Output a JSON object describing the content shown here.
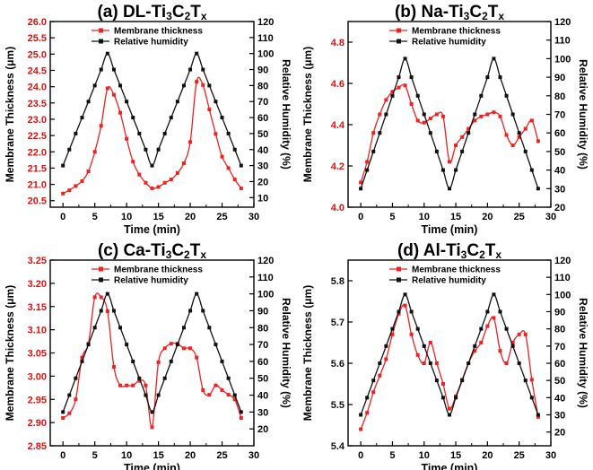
{
  "chart_data": [
    {
      "type": "line",
      "panel_title": "(a) DL-Ti₃C₂Tₓ",
      "title_main": "(a) DL-Ti",
      "title_sub1": "3",
      "title_mid": "C",
      "title_sub2": "2",
      "title_end": "T",
      "title_sub3": "x",
      "xlabel": "Time (min)",
      "ylabel_left": "Membrane Thickness (μm)",
      "ylabel_right": "Relative Humidity (%)",
      "xlim": [
        -2,
        30
      ],
      "xticks": [
        0,
        5,
        10,
        15,
        20,
        25,
        30
      ],
      "ylim_left": [
        20.3,
        26.0
      ],
      "yticks_left": [
        20.5,
        21.0,
        21.5,
        22.0,
        22.5,
        23.0,
        23.5,
        24.0,
        24.5,
        25.0,
        25.5,
        26.0
      ],
      "tick_labels_left": [
        "20.5",
        "21.0",
        "21.5",
        "22.0",
        "22.5",
        "23.0",
        "23.5",
        "24.0",
        "24.5",
        "25.0",
        "25.5",
        "26.0"
      ],
      "ylim_right": [
        4,
        120
      ],
      "yticks_right": [
        10,
        20,
        30,
        40,
        50,
        60,
        70,
        80,
        90,
        100,
        110,
        120
      ],
      "legend": [
        "Membrane thickness",
        "Relative humidity"
      ],
      "legend_position": "top-center",
      "series": [
        {
          "name": "Membrane thickness",
          "axis": "left",
          "color": "#ee2222",
          "x": [
            0,
            1,
            2,
            3,
            4,
            5,
            6,
            7,
            8,
            9,
            10,
            11,
            12,
            13,
            14,
            15,
            16,
            17,
            18,
            19,
            20,
            21,
            22,
            23,
            24,
            25,
            26,
            27,
            28
          ],
          "values": [
            20.72,
            20.82,
            20.95,
            21.1,
            21.4,
            22.0,
            22.8,
            23.95,
            23.75,
            23.2,
            22.4,
            21.7,
            21.3,
            21.05,
            20.88,
            20.92,
            21.05,
            21.15,
            21.35,
            21.65,
            22.3,
            24.15,
            24.05,
            23.3,
            22.55,
            21.85,
            21.5,
            21.15,
            20.88
          ]
        },
        {
          "name": "Relative humidity",
          "axis": "right",
          "color": "#111111",
          "x": [
            0,
            1,
            2,
            3,
            4,
            5,
            6,
            7,
            8,
            9,
            10,
            11,
            12,
            13,
            14,
            15,
            16,
            17,
            18,
            19,
            20,
            21,
            22,
            23,
            24,
            25,
            26,
            27,
            28
          ],
          "values": [
            30,
            40,
            50,
            60,
            70,
            80,
            90,
            100,
            90,
            80,
            70,
            60,
            50,
            40,
            30,
            40,
            50,
            60,
            70,
            80,
            90,
            100,
            90,
            80,
            70,
            60,
            50,
            40,
            30
          ]
        }
      ]
    },
    {
      "type": "line",
      "panel_title": "(b) Na-Ti₃C₂Tₓ",
      "title_main": "(b) Na-Ti",
      "title_sub1": "3",
      "title_mid": "C",
      "title_sub2": "2",
      "title_end": "T",
      "title_sub3": "x",
      "xlabel": "Time (min)",
      "ylabel_left": "Membrane Thickness (μm)",
      "ylabel_right": "Relative Humidity (%)",
      "xlim": [
        -2,
        30
      ],
      "xticks": [
        0,
        5,
        10,
        15,
        20,
        25,
        30
      ],
      "ylim_left": [
        4.0,
        4.9
      ],
      "yticks_left": [
        4.0,
        4.2,
        4.4,
        4.6,
        4.8
      ],
      "tick_labels_left": [
        "4.0",
        "4.2",
        "4.4",
        "4.6",
        "4.8"
      ],
      "ylim_right": [
        20,
        120
      ],
      "yticks_right": [
        20,
        30,
        40,
        50,
        60,
        70,
        80,
        90,
        100,
        110,
        120
      ],
      "legend": [
        "Membrane thickness",
        "Relative humidity"
      ],
      "legend_position": "top-center",
      "series": [
        {
          "name": "Membrane thickness",
          "axis": "left",
          "color": "#ee2222",
          "x": [
            0,
            1,
            2,
            3,
            4,
            5,
            6,
            7,
            8,
            9,
            10,
            11,
            12,
            13,
            14,
            15,
            16,
            17,
            18,
            19,
            20,
            21,
            22,
            23,
            24,
            25,
            26,
            27,
            28
          ],
          "values": [
            4.12,
            4.22,
            4.36,
            4.45,
            4.52,
            4.56,
            4.58,
            4.59,
            4.5,
            4.42,
            4.41,
            4.43,
            4.45,
            4.44,
            4.22,
            4.3,
            4.34,
            4.38,
            4.42,
            4.44,
            4.45,
            4.46,
            4.44,
            4.35,
            4.3,
            4.34,
            4.38,
            4.42,
            4.32
          ]
        },
        {
          "name": "Relative humidity",
          "axis": "right",
          "color": "#111111",
          "x": [
            0,
            1,
            2,
            3,
            4,
            5,
            6,
            7,
            8,
            9,
            10,
            11,
            12,
            13,
            14,
            15,
            16,
            17,
            18,
            19,
            20,
            21,
            22,
            23,
            24,
            25,
            26,
            27,
            28
          ],
          "values": [
            30,
            40,
            50,
            60,
            70,
            80,
            90,
            100,
            90,
            80,
            70,
            60,
            50,
            40,
            30,
            40,
            50,
            60,
            70,
            80,
            90,
            100,
            90,
            80,
            70,
            60,
            50,
            40,
            30
          ]
        }
      ]
    },
    {
      "type": "line",
      "panel_title": "(c) Ca-Ti₃C₂Tₓ",
      "title_main": "(c) Ca-Ti",
      "title_sub1": "3",
      "title_mid": "C",
      "title_sub2": "2",
      "title_end": "T",
      "title_sub3": "x",
      "xlabel": "Time (min)",
      "ylabel_left": "Membrane Thickness (μm)",
      "ylabel_right": "Relative Humidity (%)",
      "xlim": [
        -2,
        30
      ],
      "xticks": [
        0,
        5,
        10,
        15,
        20,
        25,
        30
      ],
      "ylim_left": [
        2.85,
        3.25
      ],
      "yticks_left": [
        2.85,
        2.9,
        2.95,
        3.0,
        3.05,
        3.1,
        3.15,
        3.2,
        3.25
      ],
      "tick_labels_left": [
        "2.85",
        "2.90",
        "2.95",
        "3.00",
        "3.05",
        "3.10",
        "3.15",
        "3.20",
        "3.25"
      ],
      "ylim_right": [
        10,
        120
      ],
      "yticks_right": [
        20,
        30,
        40,
        50,
        60,
        70,
        80,
        90,
        100,
        110,
        120
      ],
      "legend": [
        "Membrane thickness",
        "Relative humidity"
      ],
      "legend_position": "top-center",
      "series": [
        {
          "name": "Membrane thickness",
          "axis": "left",
          "color": "#ee2222",
          "x": [
            0,
            1,
            2,
            3,
            4,
            5,
            6,
            7,
            8,
            9,
            10,
            11,
            12,
            13,
            14,
            15,
            16,
            17,
            18,
            19,
            20,
            21,
            22,
            23,
            24,
            25,
            26,
            27,
            28
          ],
          "values": [
            2.91,
            2.92,
            2.95,
            3.04,
            3.07,
            3.17,
            3.17,
            3.14,
            3.02,
            2.98,
            2.98,
            2.98,
            2.99,
            2.98,
            2.89,
            3.03,
            3.06,
            3.07,
            3.07,
            3.06,
            3.06,
            3.04,
            2.97,
            2.96,
            2.98,
            2.97,
            2.96,
            2.95,
            2.91
          ]
        },
        {
          "name": "Relative humidity",
          "axis": "right",
          "color": "#111111",
          "x": [
            0,
            1,
            2,
            3,
            4,
            5,
            6,
            7,
            8,
            9,
            10,
            11,
            12,
            13,
            14,
            15,
            16,
            17,
            18,
            19,
            20,
            21,
            22,
            23,
            24,
            25,
            26,
            27,
            28
          ],
          "values": [
            30,
            40,
            50,
            60,
            70,
            80,
            90,
            100,
            90,
            80,
            70,
            60,
            50,
            40,
            30,
            40,
            50,
            60,
            70,
            80,
            90,
            100,
            90,
            80,
            70,
            60,
            50,
            40,
            30
          ]
        }
      ]
    },
    {
      "type": "line",
      "panel_title": "(d) Al-Ti₃C₂Tₓ",
      "title_main": "(d) Al-Ti",
      "title_sub1": "3",
      "title_mid": "C",
      "title_sub2": "2",
      "title_end": "T",
      "title_sub3": "x",
      "xlabel": "Time (min)",
      "ylabel_left": "Membrane Thickness (μm)",
      "ylabel_right": "Relative Humidity (%)",
      "xlim": [
        -2,
        30
      ],
      "xticks": [
        0,
        5,
        10,
        15,
        20,
        25,
        30
      ],
      "ylim_left": [
        5.4,
        5.85
      ],
      "yticks_left": [
        5.4,
        5.5,
        5.6,
        5.7,
        5.8
      ],
      "tick_labels_left": [
        "5.4",
        "5.5",
        "5.6",
        "5.7",
        "5.8"
      ],
      "ylim_right": [
        12,
        120
      ],
      "yticks_right": [
        20,
        30,
        40,
        50,
        60,
        70,
        80,
        90,
        100,
        110,
        120
      ],
      "legend": [
        "Membrane thickness",
        "Relative humidity"
      ],
      "legend_position": "top-center",
      "series": [
        {
          "name": "Membrane thickness",
          "axis": "left",
          "color": "#ee2222",
          "x": [
            0,
            1,
            2,
            3,
            4,
            5,
            6,
            7,
            8,
            9,
            10,
            11,
            12,
            13,
            14,
            15,
            16,
            17,
            18,
            19,
            20,
            21,
            22,
            23,
            24,
            25,
            26,
            27,
            28
          ],
          "values": [
            5.44,
            5.48,
            5.53,
            5.57,
            5.61,
            5.67,
            5.72,
            5.74,
            5.67,
            5.62,
            5.6,
            5.65,
            5.6,
            5.55,
            5.49,
            5.52,
            5.56,
            5.6,
            5.63,
            5.65,
            5.69,
            5.71,
            5.63,
            5.6,
            5.65,
            5.67,
            5.67,
            5.56,
            5.47
          ]
        },
        {
          "name": "Relative humidity",
          "axis": "right",
          "color": "#111111",
          "x": [
            0,
            1,
            2,
            3,
            4,
            5,
            6,
            7,
            8,
            9,
            10,
            11,
            12,
            13,
            14,
            15,
            16,
            17,
            18,
            19,
            20,
            21,
            22,
            23,
            24,
            25,
            26,
            27,
            28
          ],
          "values": [
            30,
            40,
            50,
            60,
            70,
            80,
            90,
            100,
            90,
            80,
            70,
            60,
            50,
            40,
            30,
            40,
            50,
            60,
            70,
            80,
            90,
            100,
            90,
            80,
            70,
            60,
            50,
            40,
            30
          ]
        }
      ]
    }
  ],
  "colors": {
    "thickness": "#ee2222",
    "humidity": "#111111",
    "left_axis_a": "#dd1111"
  }
}
